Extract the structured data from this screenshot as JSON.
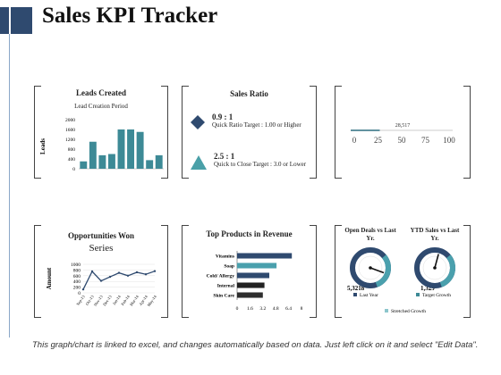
{
  "page": {
    "title": "Sales KPI Tracker"
  },
  "leads": {
    "title": "Leads Created",
    "subtitle": "Lead Creation Period",
    "ylabel": "Leads"
  },
  "ratio": {
    "title": "Sales Ratio",
    "items": [
      {
        "value": "0.9 : 1",
        "desc": "Quick Ratio Target : 1.00 or Higher"
      },
      {
        "value": "2.5 : 1",
        "desc": "Quick to Close Target : 3.0 or Lower"
      }
    ]
  },
  "progress": {
    "value_label": "28,517"
  },
  "opp": {
    "title": "Opportunities Won",
    "series": "Series",
    "ylabel": "Amount"
  },
  "products": {
    "title": "Top Products in Revenue"
  },
  "gauges": {
    "open": {
      "title": "Open Deals vs Last Yr.",
      "value": "5,3218"
    },
    "ytd": {
      "title": "YTD Sales vs Last Yr.",
      "value": "1,329"
    },
    "legend": {
      "last_year": "Last Year",
      "target_growth": "Target Growth",
      "stretched": "Stretched Growth"
    }
  },
  "footer": "This graph/chart is linked to excel, and changes automatically based on data. Just left click on it and select \"Edit Data\".",
  "colors": {
    "accent": "#2f4a6f",
    "teal": "#4a9aa6"
  },
  "chart_data": [
    {
      "type": "bar",
      "ylabel": "Leads",
      "yticks": [
        "0",
        "400",
        "800",
        "1200",
        "1600",
        "2000"
      ],
      "ylim": [
        0,
        2000
      ],
      "values": [
        300,
        1100,
        550,
        600,
        1600,
        1600,
        1500,
        350,
        550
      ],
      "color": "#3d8a96"
    },
    {
      "type": "line",
      "ylabel": "Amount",
      "series_name": "Series",
      "yticks": [
        "0",
        "200",
        "400",
        "600",
        "800",
        "1000"
      ],
      "ylim": [
        0,
        1000
      ],
      "categories": [
        "Sep-13",
        "Oct-13",
        "Nov-13",
        "Dec-13",
        "Jan-14",
        "Feb-14",
        "Mar-14",
        "Apr-14",
        "May-14"
      ],
      "values": [
        120,
        750,
        420,
        560,
        700,
        600,
        720,
        650,
        760
      ]
    },
    {
      "type": "bar",
      "orientation": "horizontal",
      "categories": [
        "Vitamins",
        "Soap",
        "Cold/ Allergy",
        "Internal",
        "Skin Care"
      ],
      "values": [
        6.8,
        4.9,
        4.0,
        3.4,
        3.2
      ],
      "xticks": [
        "0",
        "1.6",
        "3.2",
        "4.8",
        "6.4",
        "8"
      ],
      "xlim": [
        0,
        8
      ],
      "colors": [
        "#2f4a6f",
        "#4aa0ad",
        "#2f4a6f",
        "#222222",
        "#2e2e2e"
      ]
    }
  ]
}
